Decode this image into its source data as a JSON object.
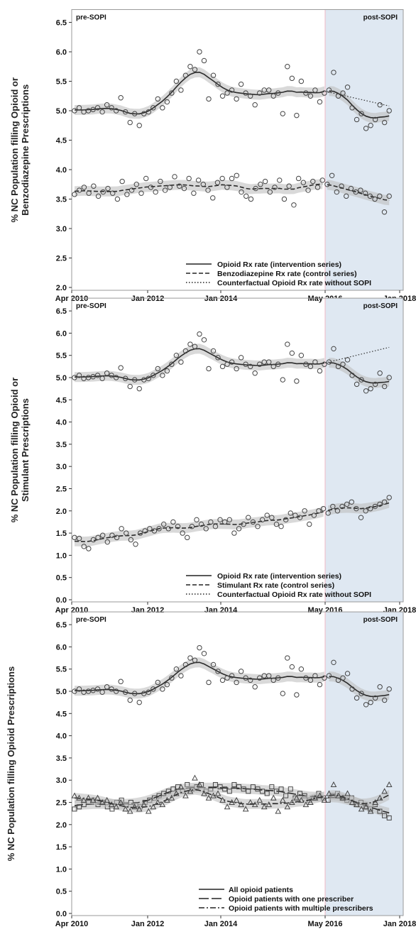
{
  "chart_data": [
    {
      "type": "scatter",
      "ylabel": "% NC Population filling Opioid or Benzodiazepine Prescriptions",
      "xticks": [
        "Apr 2010",
        "Jan 2012",
        "Jan 2014",
        "May 2016",
        "Jan 2018"
      ],
      "yticks": [
        "2.0",
        "2.5",
        "3.0",
        "3.5",
        "4.0",
        "4.5",
        "5.0",
        "5.5",
        "6.0",
        "6.5"
      ],
      "ylim": [
        2.0,
        6.5
      ],
      "xlim_months_label": [
        "Apr 2010",
        "Jan 2018"
      ],
      "regions": [
        "pre-SOPI",
        "post-SOPI"
      ],
      "legend": [
        "Opioid Rx rate (intervention series)",
        "Benzodiazepine Rx rate (control series)",
        "Counterfactual Opioid Rx rate without SOPI"
      ],
      "legend_position": "bottom-right",
      "series": [
        {
          "name": "Opioid Rx rate (intervention series)",
          "style": "solid",
          "values": [
            5.0,
            5.05,
            4.98,
            5.0,
            5.02,
            5.05,
            4.98,
            5.1,
            5.05,
            5.0,
            5.22,
            4.98,
            4.8,
            4.95,
            4.75,
            4.95,
            4.98,
            5.05,
            5.2,
            5.05,
            5.15,
            5.3,
            5.5,
            5.35,
            5.6,
            5.75,
            5.7,
            6.0,
            5.85,
            5.2,
            5.6,
            5.45,
            5.25,
            5.3,
            5.35,
            5.2,
            5.45,
            5.3,
            5.25,
            5.1,
            5.3,
            5.35,
            5.35,
            5.25,
            5.3,
            4.95,
            5.75,
            5.55,
            4.92,
            5.5,
            5.3,
            5.25,
            5.35,
            5.15,
            5.3,
            5.35,
            5.65,
            5.25,
            5.3,
            5.4,
            5.05,
            4.85,
            4.95,
            4.7,
            4.75,
            4.85,
            5.1,
            4.8,
            5.0
          ]
        },
        {
          "name": "Benzodiazepine Rx rate (control series)",
          "style": "dashed",
          "values": [
            3.58,
            3.65,
            3.7,
            3.6,
            3.72,
            3.55,
            3.62,
            3.68,
            3.6,
            3.5,
            3.8,
            3.58,
            3.65,
            3.75,
            3.6,
            3.85,
            3.7,
            3.62,
            3.8,
            3.65,
            3.7,
            3.88,
            3.72,
            3.68,
            3.85,
            3.6,
            3.82,
            3.75,
            3.65,
            3.52,
            3.78,
            3.85,
            3.7,
            3.85,
            3.9,
            3.62,
            3.55,
            3.5,
            3.68,
            3.75,
            3.8,
            3.62,
            3.7,
            3.82,
            3.5,
            3.72,
            3.4,
            3.85,
            3.78,
            3.65,
            3.8,
            3.7,
            3.82,
            3.75,
            3.9,
            3.62,
            3.72,
            3.55,
            3.68,
            3.62,
            3.65,
            3.6,
            3.55,
            3.5,
            3.55,
            3.28,
            3.55
          ]
        }
      ]
    },
    {
      "type": "scatter",
      "ylabel": "% NC Population filling Opioid or Stimulant Prescriptions",
      "xticks": [
        "Apr 2010",
        "Jan 2012",
        "Jan 2014",
        "May 2016",
        "Jan 2018"
      ],
      "yticks": [
        "0.0",
        "0.5",
        "1.0",
        "1.5",
        "2.0",
        "2.5",
        "3.0",
        "3.5",
        "4.0",
        "4.5",
        "5.0",
        "5.5",
        "6.0",
        "6.5"
      ],
      "ylim": [
        0.0,
        6.5
      ],
      "regions": [
        "pre-SOPI",
        "post-SOPI"
      ],
      "legend": [
        "Opioid Rx rate (intervention series)",
        "Stimulant Rx rate (control series)",
        "Counterfactual Opioid Rx rate without SOPI"
      ],
      "legend_position": "bottom-right",
      "series": [
        {
          "name": "Opioid Rx rate (intervention series)",
          "style": "solid",
          "values": [
            5.0,
            5.05,
            4.98,
            5.0,
            5.02,
            5.05,
            4.98,
            5.1,
            5.05,
            5.0,
            5.22,
            4.98,
            4.8,
            4.95,
            4.75,
            4.95,
            4.98,
            5.05,
            5.2,
            5.05,
            5.15,
            5.3,
            5.5,
            5.35,
            5.6,
            5.75,
            5.7,
            5.98,
            5.85,
            5.2,
            5.6,
            5.45,
            5.25,
            5.3,
            5.35,
            5.2,
            5.45,
            5.3,
            5.25,
            5.1,
            5.3,
            5.35,
            5.35,
            5.25,
            5.3,
            4.95,
            5.75,
            5.55,
            4.92,
            5.5,
            5.3,
            5.25,
            5.35,
            5.15,
            5.3,
            5.35,
            5.65,
            5.25,
            5.3,
            5.4,
            5.05,
            4.85,
            4.95,
            4.7,
            4.75,
            4.85,
            5.1,
            4.8,
            5.0
          ]
        },
        {
          "name": "Stimulant Rx rate (control series)",
          "style": "dashed",
          "values": [
            1.4,
            1.38,
            1.2,
            1.15,
            1.35,
            1.4,
            1.45,
            1.3,
            1.45,
            1.4,
            1.6,
            1.5,
            1.35,
            1.25,
            1.5,
            1.55,
            1.6,
            1.55,
            1.6,
            1.7,
            1.6,
            1.75,
            1.65,
            1.5,
            1.4,
            1.65,
            1.8,
            1.7,
            1.6,
            1.75,
            1.65,
            1.8,
            1.75,
            1.8,
            1.5,
            1.6,
            1.7,
            1.85,
            1.75,
            1.65,
            1.8,
            1.9,
            1.85,
            1.7,
            1.65,
            1.8,
            1.95,
            1.9,
            1.85,
            2.0,
            1.7,
            1.9,
            2.0,
            2.05,
            1.95,
            2.1,
            2.0,
            2.1,
            2.15,
            2.2,
            2.05,
            1.85,
            2.0,
            2.05,
            2.1,
            2.15,
            2.2,
            2.3
          ]
        }
      ]
    },
    {
      "type": "scatter",
      "ylabel": "% NC Population filling Opioid Prescriptions",
      "xticks": [
        "Apr 2010",
        "Jan 2012",
        "Jan 2014",
        "May 2016",
        "Jan 2018"
      ],
      "yticks": [
        "0.0",
        "0.5",
        "1.0",
        "1.5",
        "2.0",
        "2.5",
        "3.0",
        "3.5",
        "4.0",
        "4.5",
        "5.0",
        "5.5",
        "6.0",
        "6.5"
      ],
      "ylim": [
        0.0,
        6.5
      ],
      "regions": [
        "pre-SOPI",
        "post-SOPI"
      ],
      "legend": [
        "All opioid patients",
        "Opioid patients with one prescriber",
        "Opioid patients with multiple prescribers"
      ],
      "legend_position": "bottom-right",
      "series": [
        {
          "name": "All opioid patients",
          "style": "solid",
          "values": [
            5.0,
            5.05,
            4.98,
            5.0,
            5.02,
            5.05,
            4.98,
            5.1,
            5.05,
            5.0,
            5.22,
            4.98,
            4.8,
            4.95,
            4.75,
            4.95,
            4.98,
            5.05,
            5.2,
            5.05,
            5.15,
            5.3,
            5.5,
            5.35,
            5.6,
            5.75,
            5.7,
            5.98,
            5.85,
            5.2,
            5.6,
            5.45,
            5.25,
            5.3,
            5.35,
            5.2,
            5.45,
            5.3,
            5.25,
            5.1,
            5.3,
            5.35,
            5.35,
            5.25,
            5.3,
            4.95,
            5.75,
            5.55,
            4.92,
            5.5,
            5.3,
            5.25,
            5.35,
            5.15,
            5.3,
            5.35,
            5.65,
            5.25,
            5.3,
            5.4,
            5.05,
            4.85,
            4.95,
            4.7,
            4.75,
            4.85,
            5.1,
            4.8,
            5.05
          ]
        },
        {
          "name": "Opioid patients with one prescriber",
          "style": "long-dash",
          "values": [
            2.35,
            2.4,
            2.45,
            2.5,
            2.55,
            2.45,
            2.5,
            2.4,
            2.35,
            2.5,
            2.55,
            2.45,
            2.5,
            2.45,
            2.4,
            2.5,
            2.55,
            2.6,
            2.65,
            2.7,
            2.75,
            2.8,
            2.85,
            2.75,
            2.9,
            2.8,
            2.85,
            2.9,
            2.75,
            2.8,
            2.9,
            2.85,
            2.8,
            2.75,
            2.9,
            2.85,
            2.8,
            2.75,
            2.85,
            2.8,
            2.75,
            2.7,
            2.85,
            2.75,
            2.8,
            2.65,
            2.8,
            2.6,
            2.7,
            2.65,
            2.55,
            2.6,
            2.7,
            2.6,
            2.55,
            2.65,
            2.7,
            2.6,
            2.55,
            2.6,
            2.45,
            2.5,
            2.4,
            2.35,
            2.45,
            2.3,
            2.2,
            2.15
          ]
        },
        {
          "name": "Opioid patients with multiple prescribers",
          "style": "dash-dot",
          "values": [
            2.65,
            2.6,
            2.55,
            2.6,
            2.55,
            2.6,
            2.5,
            2.55,
            2.45,
            2.4,
            2.5,
            2.35,
            2.3,
            2.4,
            2.35,
            2.45,
            2.3,
            2.4,
            2.5,
            2.45,
            2.55,
            2.6,
            2.7,
            2.85,
            2.65,
            2.75,
            3.05,
            2.9,
            2.7,
            2.6,
            2.65,
            2.7,
            2.55,
            2.4,
            2.5,
            2.55,
            2.45,
            2.35,
            2.5,
            2.45,
            2.55,
            2.4,
            2.45,
            2.6,
            2.3,
            2.55,
            2.4,
            2.5,
            2.6,
            2.55,
            2.45,
            2.5,
            2.6,
            2.65,
            2.55,
            2.7,
            2.9,
            2.65,
            2.6,
            2.7,
            2.5,
            2.45,
            2.35,
            2.4,
            2.3,
            2.5,
            2.6,
            2.75,
            2.9
          ]
        }
      ]
    }
  ],
  "colors": {
    "post_shade": "#dfe8f2",
    "band": "#b9b9b9",
    "line": "#2b2b2b",
    "marker": "#444444",
    "divider": "#f0b8c4"
  }
}
